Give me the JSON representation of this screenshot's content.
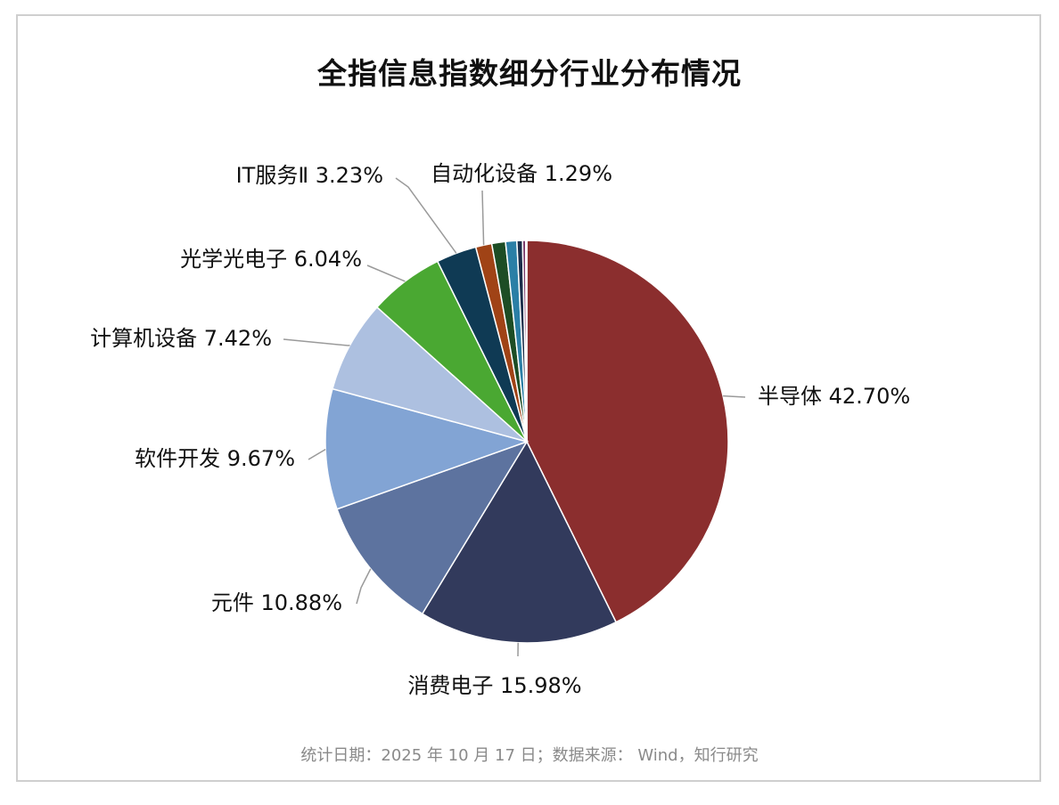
{
  "title": "全指信息指数细分行业分布情况",
  "footer": "统计日期：2025 年 10 月 17 日；数据来源： Wind，知行研究",
  "chart_data": {
    "type": "pie",
    "title": "全指信息指数细分行业分布情况",
    "slices": [
      {
        "label": "半导体",
        "value": 42.7,
        "display": "半导体 42.70%",
        "color": "#8b2e2e"
      },
      {
        "label": "消费电子",
        "value": 15.98,
        "display": "消费电子 15.98%",
        "color": "#323a5c"
      },
      {
        "label": "元件",
        "value": 10.88,
        "display": "元件 10.88%",
        "color": "#5d739f"
      },
      {
        "label": "软件开发",
        "value": 9.67,
        "display": "软件开发 9.67%",
        "color": "#82a4d4"
      },
      {
        "label": "计算机设备",
        "value": 7.42,
        "display": "计算机设备 7.42%",
        "color": "#adc0e0"
      },
      {
        "label": "光学光电子",
        "value": 6.04,
        "display": "光学光电子 6.04%",
        "color": "#4aa832"
      },
      {
        "label": "IT服务Ⅱ",
        "value": 3.23,
        "display": "IT服务Ⅱ  3.23%",
        "color": "#0f3a54"
      },
      {
        "label": "自动化设备",
        "value": 1.29,
        "display": "自动化设备 1.29%",
        "color": "#a04316"
      },
      {
        "label": "",
        "value": 1.1,
        "display": "",
        "color": "#1d4d25"
      },
      {
        "label": "",
        "value": 0.9,
        "display": "",
        "color": "#2b7fa6"
      },
      {
        "label": "",
        "value": 0.45,
        "display": "",
        "color": "#1a2d4a"
      },
      {
        "label": "",
        "value": 0.25,
        "display": "",
        "color": "#7a3a6a"
      },
      {
        "label": "",
        "value": 0.09,
        "display": "",
        "color": "#c9a74a"
      }
    ]
  }
}
